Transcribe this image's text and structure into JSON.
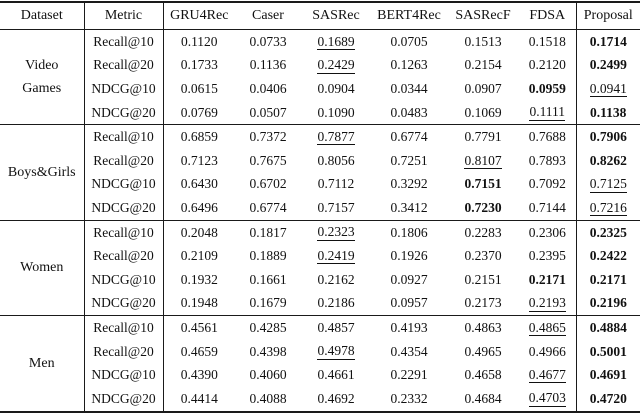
{
  "table": {
    "columns": [
      "Dataset",
      "Metric",
      "GRU4Rec",
      "Caser",
      "SASRec",
      "BERT4Rec",
      "SASRecF",
      "FDSA",
      "Proposal"
    ],
    "colors": {
      "text": "#111111",
      "rule": "#1a1a1a",
      "background": "#ffffff"
    },
    "groups": [
      {
        "dataset_lines": [
          "Video",
          "Games"
        ],
        "rows": [
          {
            "metric": "Recall@10",
            "cells": [
              {
                "v": "0.1120"
              },
              {
                "v": "0.0733"
              },
              {
                "v": "0.1689",
                "u": true
              },
              {
                "v": "0.0705"
              },
              {
                "v": "0.1513"
              },
              {
                "v": "0.1518"
              },
              {
                "v": "0.1714",
                "b": true
              }
            ]
          },
          {
            "metric": "Recall@20",
            "cells": [
              {
                "v": "0.1733"
              },
              {
                "v": "0.1136"
              },
              {
                "v": "0.2429",
                "u": true
              },
              {
                "v": "0.1263"
              },
              {
                "v": "0.2154"
              },
              {
                "v": "0.2120"
              },
              {
                "v": "0.2499",
                "b": true
              }
            ]
          },
          {
            "metric": "NDCG@10",
            "cells": [
              {
                "v": "0.0615"
              },
              {
                "v": "0.0406"
              },
              {
                "v": "0.0904"
              },
              {
                "v": "0.0344"
              },
              {
                "v": "0.0907"
              },
              {
                "v": "0.0959",
                "b": true
              },
              {
                "v": "0.0941",
                "u": true
              }
            ]
          },
          {
            "metric": "NDCG@20",
            "cells": [
              {
                "v": "0.0769"
              },
              {
                "v": "0.0507"
              },
              {
                "v": "0.1090"
              },
              {
                "v": "0.0483"
              },
              {
                "v": "0.1069"
              },
              {
                "v": "0.1111",
                "u": true
              },
              {
                "v": "0.1138",
                "b": true
              }
            ]
          }
        ]
      },
      {
        "dataset_lines": [
          "Boys&Girls"
        ],
        "rows": [
          {
            "metric": "Recall@10",
            "cells": [
              {
                "v": "0.6859"
              },
              {
                "v": "0.7372"
              },
              {
                "v": "0.7877",
                "u": true
              },
              {
                "v": "0.6774"
              },
              {
                "v": "0.7791"
              },
              {
                "v": "0.7688"
              },
              {
                "v": "0.7906",
                "b": true
              }
            ]
          },
          {
            "metric": "Recall@20",
            "cells": [
              {
                "v": "0.7123"
              },
              {
                "v": "0.7675"
              },
              {
                "v": "0.8056"
              },
              {
                "v": "0.7251"
              },
              {
                "v": "0.8107",
                "u": true
              },
              {
                "v": "0.7893"
              },
              {
                "v": "0.8262",
                "b": true
              }
            ]
          },
          {
            "metric": "NDCG@10",
            "cells": [
              {
                "v": "0.6430"
              },
              {
                "v": "0.6702"
              },
              {
                "v": "0.7112"
              },
              {
                "v": "0.3292"
              },
              {
                "v": "0.7151",
                "b": true
              },
              {
                "v": "0.7092"
              },
              {
                "v": "0.7125",
                "u": true
              }
            ]
          },
          {
            "metric": "NDCG@20",
            "cells": [
              {
                "v": "0.6496"
              },
              {
                "v": "0.6774"
              },
              {
                "v": "0.7157"
              },
              {
                "v": "0.3412"
              },
              {
                "v": "0.7230",
                "b": true
              },
              {
                "v": "0.7144"
              },
              {
                "v": "0.7216",
                "u": true
              }
            ]
          }
        ]
      },
      {
        "dataset_lines": [
          "Women"
        ],
        "rows": [
          {
            "metric": "Recall@10",
            "cells": [
              {
                "v": "0.2048"
              },
              {
                "v": "0.1817"
              },
              {
                "v": "0.2323",
                "u": true
              },
              {
                "v": "0.1806"
              },
              {
                "v": "0.2283"
              },
              {
                "v": "0.2306"
              },
              {
                "v": "0.2325",
                "b": true
              }
            ]
          },
          {
            "metric": "Recall@20",
            "cells": [
              {
                "v": "0.2109"
              },
              {
                "v": "0.1889"
              },
              {
                "v": "0.2419",
                "u": true
              },
              {
                "v": "0.1926"
              },
              {
                "v": "0.2370"
              },
              {
                "v": "0.2395"
              },
              {
                "v": "0.2422",
                "b": true
              }
            ]
          },
          {
            "metric": "NDCG@10",
            "cells": [
              {
                "v": "0.1932"
              },
              {
                "v": "0.1661"
              },
              {
                "v": "0.2162"
              },
              {
                "v": "0.0927"
              },
              {
                "v": "0.2151"
              },
              {
                "v": "0.2171",
                "b": true
              },
              {
                "v": "0.2171",
                "b": true
              }
            ]
          },
          {
            "metric": "NDCG@20",
            "cells": [
              {
                "v": "0.1948"
              },
              {
                "v": "0.1679"
              },
              {
                "v": "0.2186"
              },
              {
                "v": "0.0957"
              },
              {
                "v": "0.2173"
              },
              {
                "v": "0.2193",
                "u": true
              },
              {
                "v": "0.2196",
                "b": true
              }
            ]
          }
        ]
      },
      {
        "dataset_lines": [
          "Men"
        ],
        "rows": [
          {
            "metric": "Recall@10",
            "cells": [
              {
                "v": "0.4561"
              },
              {
                "v": "0.4285"
              },
              {
                "v": "0.4857"
              },
              {
                "v": "0.4193"
              },
              {
                "v": "0.4863"
              },
              {
                "v": "0.4865",
                "u": true
              },
              {
                "v": "0.4884",
                "b": true
              }
            ]
          },
          {
            "metric": "Recall@20",
            "cells": [
              {
                "v": "0.4659"
              },
              {
                "v": "0.4398"
              },
              {
                "v": "0.4978",
                "u": true
              },
              {
                "v": "0.4354"
              },
              {
                "v": "0.4965"
              },
              {
                "v": "0.4966"
              },
              {
                "v": "0.5001",
                "b": true
              }
            ]
          },
          {
            "metric": "NDCG@10",
            "cells": [
              {
                "v": "0.4390"
              },
              {
                "v": "0.4060"
              },
              {
                "v": "0.4661"
              },
              {
                "v": "0.2291"
              },
              {
                "v": "0.4658"
              },
              {
                "v": "0.4677",
                "u": true
              },
              {
                "v": "0.4691",
                "b": true
              }
            ]
          },
          {
            "metric": "NDCG@20",
            "cells": [
              {
                "v": "0.4414"
              },
              {
                "v": "0.4088"
              },
              {
                "v": "0.4692"
              },
              {
                "v": "0.2332"
              },
              {
                "v": "0.4684"
              },
              {
                "v": "0.4703",
                "u": true
              },
              {
                "v": "0.4720",
                "b": true
              }
            ]
          }
        ]
      }
    ]
  }
}
